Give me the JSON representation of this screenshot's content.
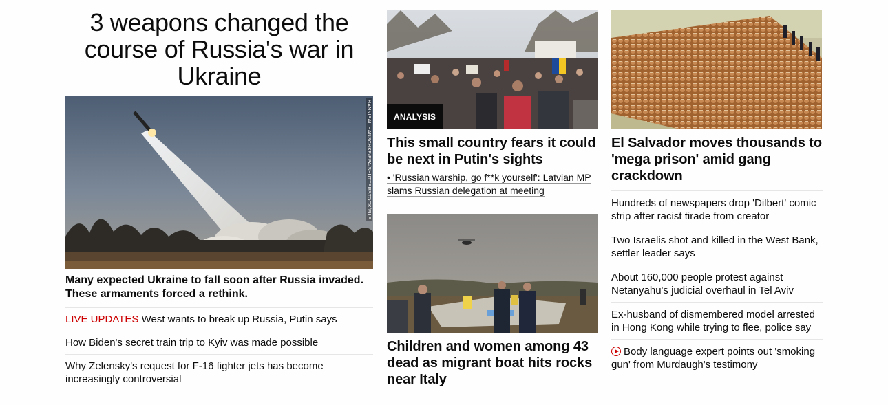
{
  "main_story": {
    "headline": "3 weapons changed the course of Russia's war in Ukraine",
    "image_credit": "HANNIBAL HANSCHKE/EPA/SHUTTERSTOCK/FILE",
    "lead": "Many expected Ukraine to fall soon after Russia invaded. These armaments forced a rethink.",
    "related": [
      {
        "prefix": "LIVE UPDATES",
        "text": " West wants to break up Russia, Putin says"
      },
      {
        "prefix": "",
        "text": "How Biden's secret train trip to Kyiv was made possible"
      },
      {
        "prefix": "",
        "text": "Why Zelensky's request for F-16 fighter jets has become increasingly controversial"
      }
    ]
  },
  "middle": {
    "card1": {
      "badge": "ANALYSIS",
      "title": "This small country fears it could be next in Putin's sights",
      "sub": "• 'Russian warship, go f**k yourself': Latvian MP slams Russian delegation at meeting"
    },
    "card2": {
      "title": "Children and women among 43 dead as migrant boat hits rocks near Italy"
    }
  },
  "right": {
    "title": "El Salvador moves thousands to 'mega prison' amid gang crackdown",
    "stories": [
      "Hundreds of newspapers drop 'Dilbert' comic strip after racist tirade from creator",
      "Two Israelis shot and killed in the West Bank, settler leader says",
      "About 160,000 people protest against Netanyahu's judicial overhaul in Tel Aviv",
      "Ex-husband of dismembered model arrested in Hong Kong while trying to flee, police say",
      "Body language expert points out 'smoking gun' from Murdaugh's testimony"
    ]
  },
  "colors": {
    "live": "#cc0000",
    "text": "#0c0c0c",
    "divider": "#e6e6e6"
  }
}
